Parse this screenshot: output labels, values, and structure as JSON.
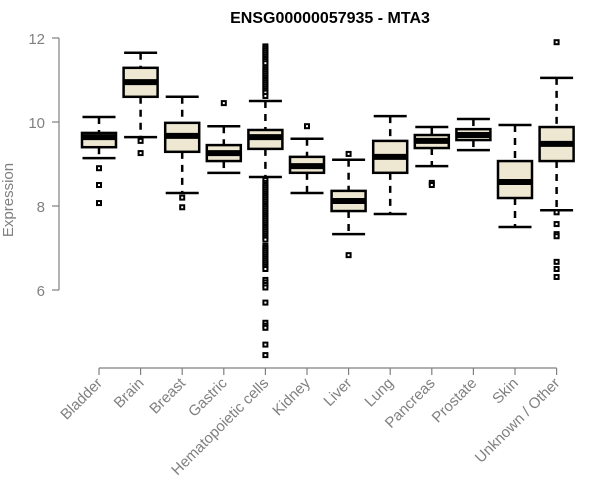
{
  "chart_data": {
    "type": "boxplot",
    "title": "ENSG00000057935 - MTA3",
    "xlabel": "",
    "ylabel": "Expression",
    "ylim": [
      4.2,
      12.0
    ],
    "yticks": [
      6,
      8,
      10,
      12
    ],
    "grid": false,
    "legend": "none",
    "colors": {
      "box_fill": "#EEE8D2",
      "box_stroke": "#000000",
      "axis": "#808080"
    },
    "categories": [
      "Bladder",
      "Brain",
      "Breast",
      "Gastric",
      "Hematopoietic cells",
      "Kidney",
      "Liver",
      "Lung",
      "Pancreas",
      "Prostate",
      "Skin",
      "Unknown / Other"
    ],
    "series": [
      {
        "name": "Bladder",
        "whisker_low": 9.14,
        "q1": 9.4,
        "median": 9.64,
        "q3": 9.74,
        "whisker_high": 10.12,
        "outliers": [
          8.9,
          8.5,
          8.07
        ]
      },
      {
        "name": "Brain",
        "whisker_low": 9.64,
        "q1": 10.6,
        "median": 10.95,
        "q3": 11.29,
        "whisker_high": 11.65,
        "outliers": [
          9.55,
          9.26
        ]
      },
      {
        "name": "Breast",
        "whisker_low": 8.31,
        "q1": 9.29,
        "median": 9.67,
        "q3": 9.98,
        "whisker_high": 10.6,
        "outliers": [
          8.2,
          7.97
        ]
      },
      {
        "name": "Gastric",
        "whisker_low": 8.79,
        "q1": 9.07,
        "median": 9.26,
        "q3": 9.45,
        "whisker_high": 9.9,
        "outliers": [
          10.45
        ]
      },
      {
        "name": "Hematopoietic cells",
        "whisker_low": 8.69,
        "q1": 9.36,
        "median": 9.64,
        "q3": 9.81,
        "whisker_high": 10.5,
        "outliers": [
          11.8,
          11.75,
          11.7,
          11.65,
          11.6,
          11.55,
          11.5,
          11.45,
          11.4,
          11.3,
          11.25,
          11.2,
          11.15,
          11.1,
          11.05,
          11.0,
          10.95,
          10.9,
          10.85,
          10.8,
          10.75,
          10.7,
          10.62,
          8.62,
          8.55,
          8.5,
          8.45,
          8.4,
          8.35,
          8.3,
          8.25,
          8.2,
          8.15,
          8.1,
          8.05,
          8.0,
          7.95,
          7.9,
          7.85,
          7.8,
          7.75,
          7.7,
          7.65,
          7.6,
          7.55,
          7.5,
          7.45,
          7.4,
          7.35,
          7.3,
          7.25,
          7.2,
          7.05,
          7.0,
          6.95,
          6.9,
          6.85,
          6.8,
          6.75,
          6.7,
          6.65,
          6.6,
          6.55,
          6.5,
          6.24,
          6.18,
          6.12,
          6.06,
          5.7,
          5.22,
          5.15,
          5.1,
          4.7,
          4.45
        ]
      },
      {
        "name": "Kidney",
        "whisker_low": 8.31,
        "q1": 8.79,
        "median": 8.95,
        "q3": 9.17,
        "whisker_high": 9.6,
        "outliers": [
          9.9
        ]
      },
      {
        "name": "Liver",
        "whisker_low": 7.33,
        "q1": 7.88,
        "median": 8.12,
        "q3": 8.36,
        "whisker_high": 9.1,
        "outliers": [
          9.24,
          6.83
        ]
      },
      {
        "name": "Lung",
        "whisker_low": 7.81,
        "q1": 8.79,
        "median": 9.17,
        "q3": 9.55,
        "whisker_high": 10.14,
        "outliers": []
      },
      {
        "name": "Pancreas",
        "whisker_low": 8.95,
        "q1": 9.38,
        "median": 9.55,
        "q3": 9.69,
        "whisker_high": 9.88,
        "outliers": [
          8.55,
          8.5
        ]
      },
      {
        "name": "Prostate",
        "whisker_low": 9.33,
        "q1": 9.57,
        "median": 9.69,
        "q3": 9.83,
        "whisker_high": 10.07,
        "outliers": []
      },
      {
        "name": "Skin",
        "whisker_low": 7.5,
        "q1": 8.19,
        "median": 8.57,
        "q3": 9.07,
        "whisker_high": 9.93,
        "outliers": []
      },
      {
        "name": "Unknown / Other",
        "whisker_low": 7.9,
        "q1": 9.07,
        "median": 9.48,
        "q3": 9.88,
        "whisker_high": 11.05,
        "outliers": [
          11.9,
          7.85,
          7.57,
          7.33,
          7.28,
          6.67,
          6.5,
          6.31
        ]
      }
    ]
  }
}
